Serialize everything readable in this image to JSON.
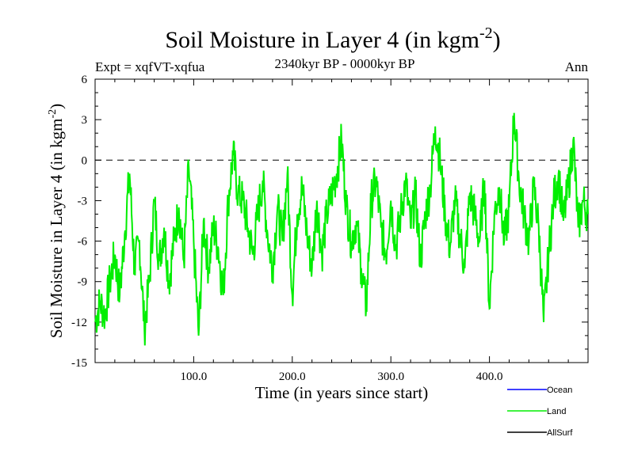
{
  "chart_data": {
    "type": "line",
    "title": "Soil Moisture in Layer 4 (in kgm",
    "title_sup": "-2",
    "title_close": ")",
    "subtitle_left": "Expt = xqfVT-xqfua",
    "subtitle_center": "2340kyr BP - 0000kyr BP",
    "subtitle_right": "Ann",
    "xlabel": "Time (in years since start)",
    "ylabel": "Soil Moisture in Layer 4 (in kgm",
    "ylabel_sup": "-2",
    "ylabel_close": ")",
    "xlim": [
      0,
      500
    ],
    "ylim": [
      -15,
      6
    ],
    "x_ticks": [
      100,
      200,
      300,
      400
    ],
    "x_tick_labels": [
      "100.0",
      "200.0",
      "300.0",
      "400.0"
    ],
    "y_ticks": [
      -15,
      -12,
      -9,
      -6,
      -3,
      0,
      3,
      6
    ],
    "y_tick_labels": [
      "-15",
      "-12",
      "-9",
      "-6",
      "-3",
      "0",
      "3",
      "6"
    ],
    "reference_line": 0,
    "series": [
      {
        "name": "Ocean",
        "color": "#0000ff",
        "values": []
      },
      {
        "name": "Land",
        "color": "#00ee00",
        "x": [
          0,
          5,
          10,
          15,
          20,
          25,
          30,
          35,
          40,
          45,
          50,
          55,
          60,
          65,
          70,
          75,
          80,
          85,
          90,
          95,
          100,
          105,
          110,
          115,
          120,
          125,
          130,
          135,
          140,
          145,
          150,
          155,
          160,
          165,
          170,
          175,
          180,
          185,
          190,
          195,
          200,
          205,
          210,
          215,
          220,
          225,
          230,
          235,
          240,
          245,
          250,
          255,
          260,
          265,
          270,
          275,
          280,
          285,
          290,
          295,
          300,
          305,
          310,
          315,
          320,
          325,
          330,
          335,
          340,
          345,
          350,
          355,
          360,
          365,
          370,
          375,
          380,
          385,
          390,
          395,
          400,
          405,
          410,
          415,
          420,
          425,
          430,
          435,
          440,
          445,
          450,
          455,
          460,
          465,
          470,
          475,
          480,
          485,
          490,
          495,
          500
        ],
        "values": [
          -12.0,
          -10.5,
          -11.5,
          -9.0,
          -7.0,
          -10.0,
          -5.5,
          -1.0,
          -8.0,
          -6.0,
          -12.5,
          -9.0,
          -3.0,
          -7.5,
          -5.0,
          -9.0,
          -6.0,
          -3.5,
          -7.5,
          -0.5,
          -6.0,
          -13.0,
          -4.5,
          -8.0,
          -5.0,
          -6.5,
          -10.0,
          -3.0,
          0.5,
          -2.5,
          -3.0,
          -5.0,
          -7.0,
          -4.0,
          -1.5,
          -5.5,
          -8.0,
          -3.5,
          -6.0,
          -1.0,
          -10.0,
          -4.0,
          -2.0,
          -5.5,
          -8.0,
          -3.0,
          -7.0,
          -4.0,
          -2.5,
          -1.0,
          1.5,
          -3.5,
          -6.0,
          -4.5,
          -8.0,
          -11.0,
          -3.0,
          -1.5,
          -5.0,
          -7.0,
          -3.0,
          -6.5,
          -4.0,
          -1.5,
          -5.0,
          -2.5,
          -7.5,
          -4.0,
          -2.0,
          2.5,
          0.0,
          -4.0,
          -6.5,
          -3.0,
          -5.5,
          -8.0,
          -2.5,
          -4.0,
          -6.0,
          -1.5,
          -11.0,
          -4.0,
          -2.0,
          -6.0,
          -3.5,
          3.5,
          -1.5,
          -4.0,
          -6.0,
          -2.0,
          -5.0,
          -12.0,
          -7.0,
          -3.0,
          -1.0,
          -4.5,
          -2.0,
          1.5,
          -5.0,
          -3.0,
          -4.0
        ]
      },
      {
        "name": "AllSurf",
        "color": "#000000",
        "values": []
      }
    ],
    "legend": [
      "Ocean",
      "Land",
      "AllSurf"
    ],
    "legend_position": "bottom-right"
  }
}
